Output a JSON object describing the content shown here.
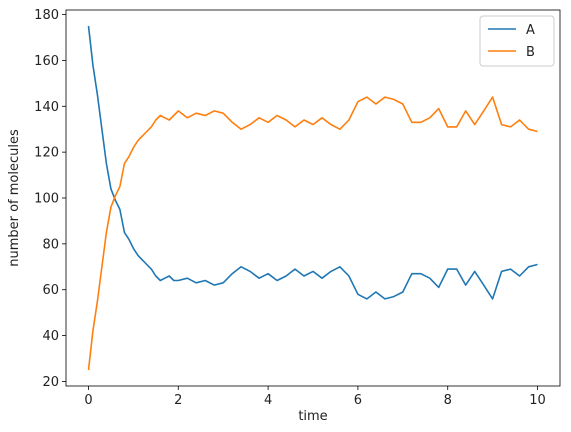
{
  "chart_data": {
    "type": "line",
    "title": "",
    "xlabel": "time",
    "ylabel": "number of molecules",
    "xlim": [
      -0.5,
      10.5
    ],
    "ylim": [
      18,
      182
    ],
    "xticks": [
      0,
      2,
      4,
      6,
      8,
      10
    ],
    "yticks": [
      20,
      40,
      60,
      80,
      100,
      120,
      140,
      160,
      180
    ],
    "grid": false,
    "legend_position": "top-right",
    "series": [
      {
        "name": "A",
        "color": "#1f77b4",
        "x": [
          0,
          0.1,
          0.2,
          0.3,
          0.4,
          0.5,
          0.6,
          0.7,
          0.8,
          0.9,
          1.0,
          1.1,
          1.2,
          1.3,
          1.4,
          1.5,
          1.6,
          1.7,
          1.8,
          1.9,
          2.0,
          2.2,
          2.4,
          2.6,
          2.8,
          3.0,
          3.2,
          3.4,
          3.6,
          3.8,
          4.0,
          4.2,
          4.4,
          4.6,
          4.8,
          5.0,
          5.2,
          5.4,
          5.6,
          5.8,
          6.0,
          6.2,
          6.4,
          6.6,
          6.8,
          7.0,
          7.2,
          7.4,
          7.6,
          7.8,
          8.0,
          8.2,
          8.4,
          8.6,
          8.8,
          9.0,
          9.2,
          9.4,
          9.6,
          9.8,
          10.0
        ],
        "values": [
          175,
          158,
          145,
          130,
          115,
          104,
          99,
          95,
          85,
          82,
          78,
          75,
          73,
          71,
          69,
          66,
          64,
          65,
          66,
          64,
          64,
          65,
          63,
          64,
          62,
          63,
          67,
          70,
          68,
          65,
          67,
          64,
          66,
          69,
          66,
          68,
          65,
          68,
          70,
          66,
          58,
          56,
          59,
          56,
          57,
          59,
          67,
          67,
          65,
          61,
          69,
          69,
          62,
          68,
          62,
          56,
          68,
          69,
          66,
          70,
          71
        ]
      },
      {
        "name": "B",
        "color": "#ff7f0e",
        "x": [
          0,
          0.1,
          0.2,
          0.3,
          0.4,
          0.5,
          0.6,
          0.7,
          0.8,
          0.9,
          1.0,
          1.1,
          1.2,
          1.3,
          1.4,
          1.5,
          1.6,
          1.7,
          1.8,
          1.9,
          2.0,
          2.2,
          2.4,
          2.6,
          2.8,
          3.0,
          3.2,
          3.4,
          3.6,
          3.8,
          4.0,
          4.2,
          4.4,
          4.6,
          4.8,
          5.0,
          5.2,
          5.4,
          5.6,
          5.8,
          6.0,
          6.2,
          6.4,
          6.6,
          6.8,
          7.0,
          7.2,
          7.4,
          7.6,
          7.8,
          8.0,
          8.2,
          8.4,
          8.6,
          8.8,
          9.0,
          9.2,
          9.4,
          9.6,
          9.8,
          10.0
        ],
        "values": [
          25,
          42,
          55,
          70,
          85,
          96,
          101,
          105,
          115,
          118,
          122,
          125,
          127,
          129,
          131,
          134,
          136,
          135,
          134,
          136,
          138,
          135,
          137,
          136,
          138,
          137,
          133,
          130,
          132,
          135,
          133,
          136,
          134,
          131,
          134,
          132,
          135,
          132,
          130,
          134,
          142,
          144,
          141,
          144,
          143,
          141,
          133,
          133,
          135,
          139,
          131,
          131,
          138,
          132,
          138,
          144,
          132,
          131,
          134,
          130,
          129
        ]
      }
    ]
  }
}
